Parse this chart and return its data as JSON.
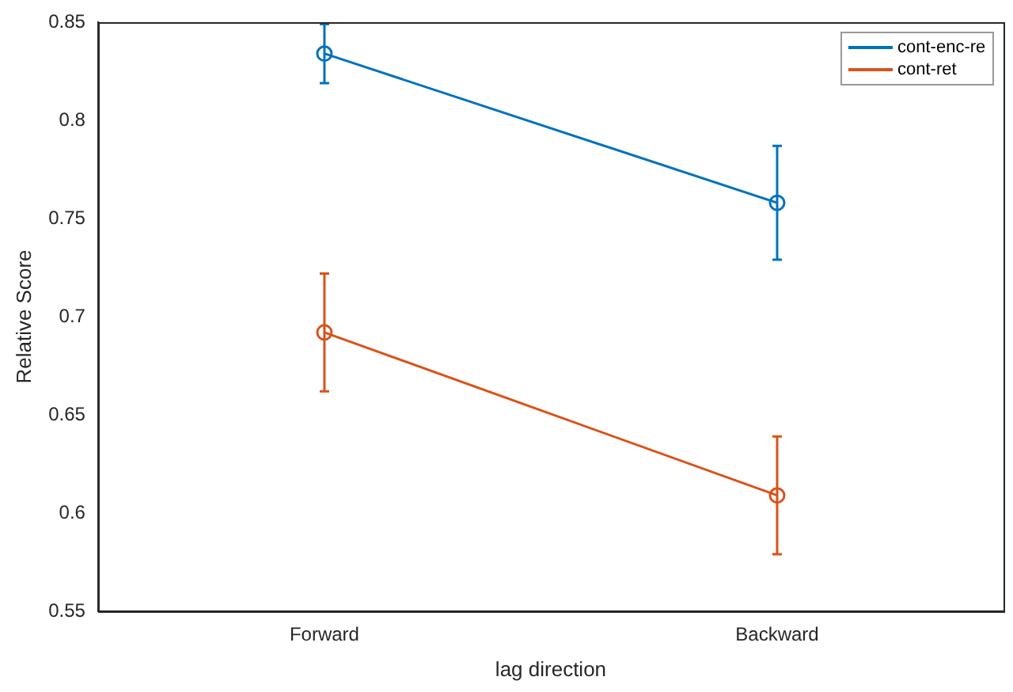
{
  "chart_data": {
    "type": "line",
    "xlabel": "lag direction",
    "ylabel": "Relative Score",
    "categories": [
      "Forward",
      "Backward"
    ],
    "series": [
      {
        "name": "cont-enc-re",
        "color": "#0072bd",
        "values": [
          0.834,
          0.758
        ],
        "errors": [
          0.015,
          0.029
        ]
      },
      {
        "name": "cont-ret",
        "color": "#d95319",
        "values": [
          0.692,
          0.609
        ],
        "errors": [
          0.03,
          0.03
        ]
      }
    ],
    "ylim": [
      0.55,
      0.85
    ],
    "yticks": [
      0.55,
      0.6,
      0.65,
      0.7,
      0.75,
      0.8,
      0.85
    ],
    "marker": "circle",
    "line_style": "solid",
    "grid": false,
    "legend": "top right"
  }
}
